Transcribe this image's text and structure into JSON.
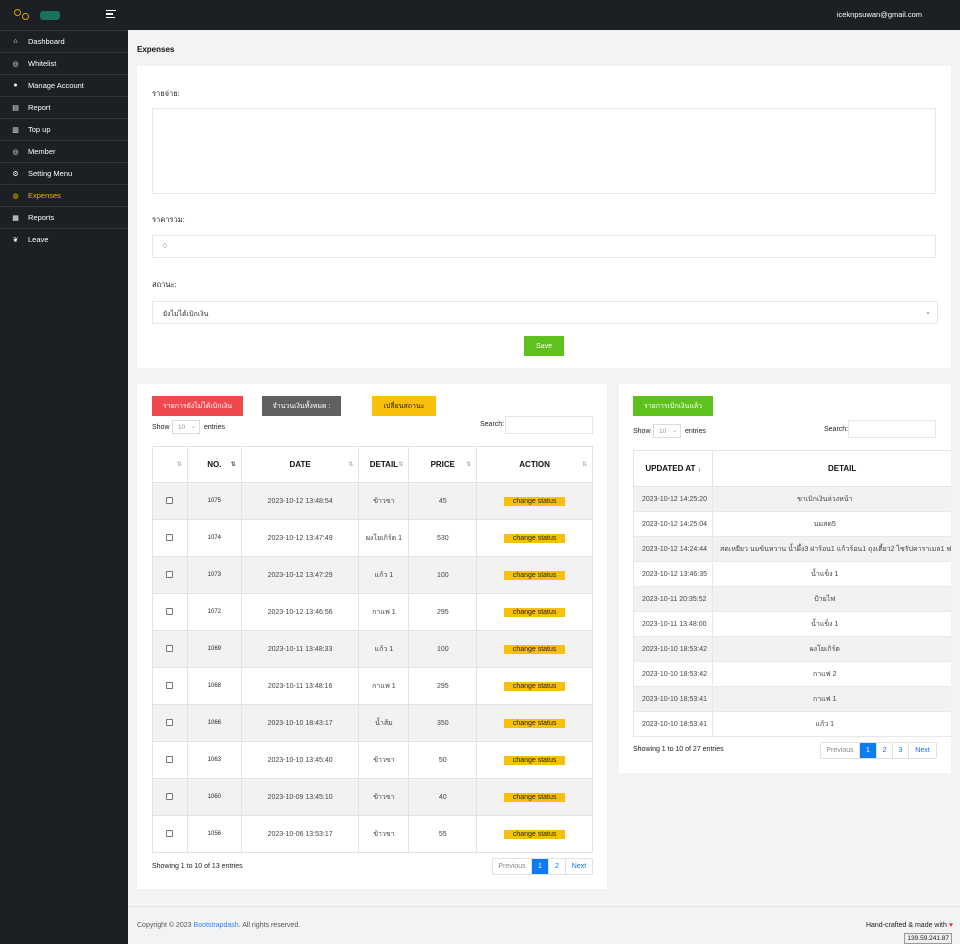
{
  "topbar": {
    "email": "iceknpsuwan@gmail.com"
  },
  "sidebar": {
    "items": [
      {
        "label": "Dashboard",
        "icon": "home-icon"
      },
      {
        "label": "Whitelist",
        "icon": "globe-icon"
      },
      {
        "label": "Manage Account",
        "icon": "user-icon"
      },
      {
        "label": "Report",
        "icon": "file-icon"
      },
      {
        "label": "Top up",
        "icon": "building-icon"
      },
      {
        "label": "Member",
        "icon": "globe-icon"
      },
      {
        "label": "Setting Menu",
        "icon": "gear-icon"
      },
      {
        "label": "Expenses",
        "icon": "coins-icon",
        "active": true
      },
      {
        "label": "Reports",
        "icon": "database-icon"
      },
      {
        "label": "Leave",
        "icon": "leaf-icon"
      }
    ]
  },
  "page": {
    "title": "Expenses"
  },
  "form": {
    "expense_label": "รายจ่าย:",
    "expense_value": "",
    "total_label": "ราคารวม:",
    "total_placeholder": "0",
    "status_label": "สถานะ:",
    "status_value": "ยังไม่ได้เบิกเงิน",
    "save_label": "Save"
  },
  "left_panel": {
    "btn_unwithdrawn": "รายการยังไม่ได้เบิกเงิน",
    "btn_total": "จำนวนเงินทั้งหมด :",
    "btn_change": "เปลี่ยนสถานะ",
    "show_label": "Show",
    "show_value": "10",
    "entries_label": "entries",
    "search_label": "Search:",
    "headers": [
      "",
      "NO.",
      "DATE",
      "DETAIL",
      "PRICE",
      "ACTION"
    ],
    "action_label": "change status",
    "rows": [
      {
        "no": "1075",
        "date": "2023-10-12 13:48:54",
        "detail": "ข้าวขา",
        "price": "45"
      },
      {
        "no": "1074",
        "date": "2023-10-12 13:47:49",
        "detail": "ผงโยเกิร์ต 1",
        "price": "530"
      },
      {
        "no": "1073",
        "date": "2023-10-12 13:47:29",
        "detail": "แก้ว 1",
        "price": "100"
      },
      {
        "no": "1072",
        "date": "2023-10-12 13:46:56",
        "detail": "กาแฟ 1",
        "price": "295"
      },
      {
        "no": "1069",
        "date": "2023-10-11 13:48:33",
        "detail": "แก้ว 1",
        "price": "100"
      },
      {
        "no": "1068",
        "date": "2023-10-11 13:48:16",
        "detail": "กาแฟ 1",
        "price": "295"
      },
      {
        "no": "1066",
        "date": "2023-10-10 18:43:17",
        "detail": "น้ำส้ม",
        "price": "350"
      },
      {
        "no": "1063",
        "date": "2023-10-10 13:45:40",
        "detail": "ข้าวขา",
        "price": "50"
      },
      {
        "no": "1060",
        "date": "2023-10-09 13:45:10",
        "detail": "ข้าวขา",
        "price": "40"
      },
      {
        "no": "1056",
        "date": "2023-10-06 13:53:17",
        "detail": "ข้าวขา",
        "price": "55"
      }
    ],
    "info": "Showing 1 to 10 of 13 entries",
    "pagination": [
      "Previous",
      "1",
      "2",
      "Next"
    ]
  },
  "right_panel": {
    "btn_withdrawn": "รายการเบิกเงินแล้ว",
    "show_label": "Show",
    "show_value": "10",
    "entries_label": "entries",
    "search_label": "Search:",
    "headers": [
      "UPDATED AT",
      "DETAIL"
    ],
    "rows": [
      {
        "updated": "2023-10-12 14:25:20",
        "detail": "ขาเบิกเงินล่วงหน้า"
      },
      {
        "updated": "2023-10-12 14:25:04",
        "detail": "นมสด5"
      },
      {
        "updated": "2023-10-12 14:24:44",
        "detail": "สตเหยียว นมข้นหวาน น้ำผึ้ง3 ฝาร้อน1 แก้วร้อน1 ถุงเตี้ยว2 ไซรัปคาราเมล1 ฟ"
      },
      {
        "updated": "2023-10-12 13:46:35",
        "detail": "น้ำแข็ง 1"
      },
      {
        "updated": "2023-10-11 20:35:52",
        "detail": "ป้ายไฟ"
      },
      {
        "updated": "2023-10-11 13:48:00",
        "detail": "น้ำแข็ง 1"
      },
      {
        "updated": "2023-10-10 18:53:42",
        "detail": "ผงโยเกิร์ต"
      },
      {
        "updated": "2023-10-10 18:53:42",
        "detail": "กาแฟ 2"
      },
      {
        "updated": "2023-10-10 18:53:41",
        "detail": "กาแฟ 1"
      },
      {
        "updated": "2023-10-10 18:53:41",
        "detail": "แก้ว 1"
      }
    ],
    "info": "Showing 1 to 10 of 27 entries",
    "pagination": [
      "Previous",
      "1",
      "2",
      "3",
      "Next"
    ]
  },
  "footer": {
    "copyright_prefix": "Copyright © 2023 ",
    "link": "Bootstrapdash",
    "copyright_suffix": ". All rights reserved.",
    "right": "Hand-crafted & made with",
    "ip": "139.59.241.87"
  },
  "colors": {
    "active": "#f4b400",
    "green": "#5fc11d",
    "red": "#f0484f",
    "yellow": "#f8c00a",
    "blue": "#0d7cf2"
  }
}
